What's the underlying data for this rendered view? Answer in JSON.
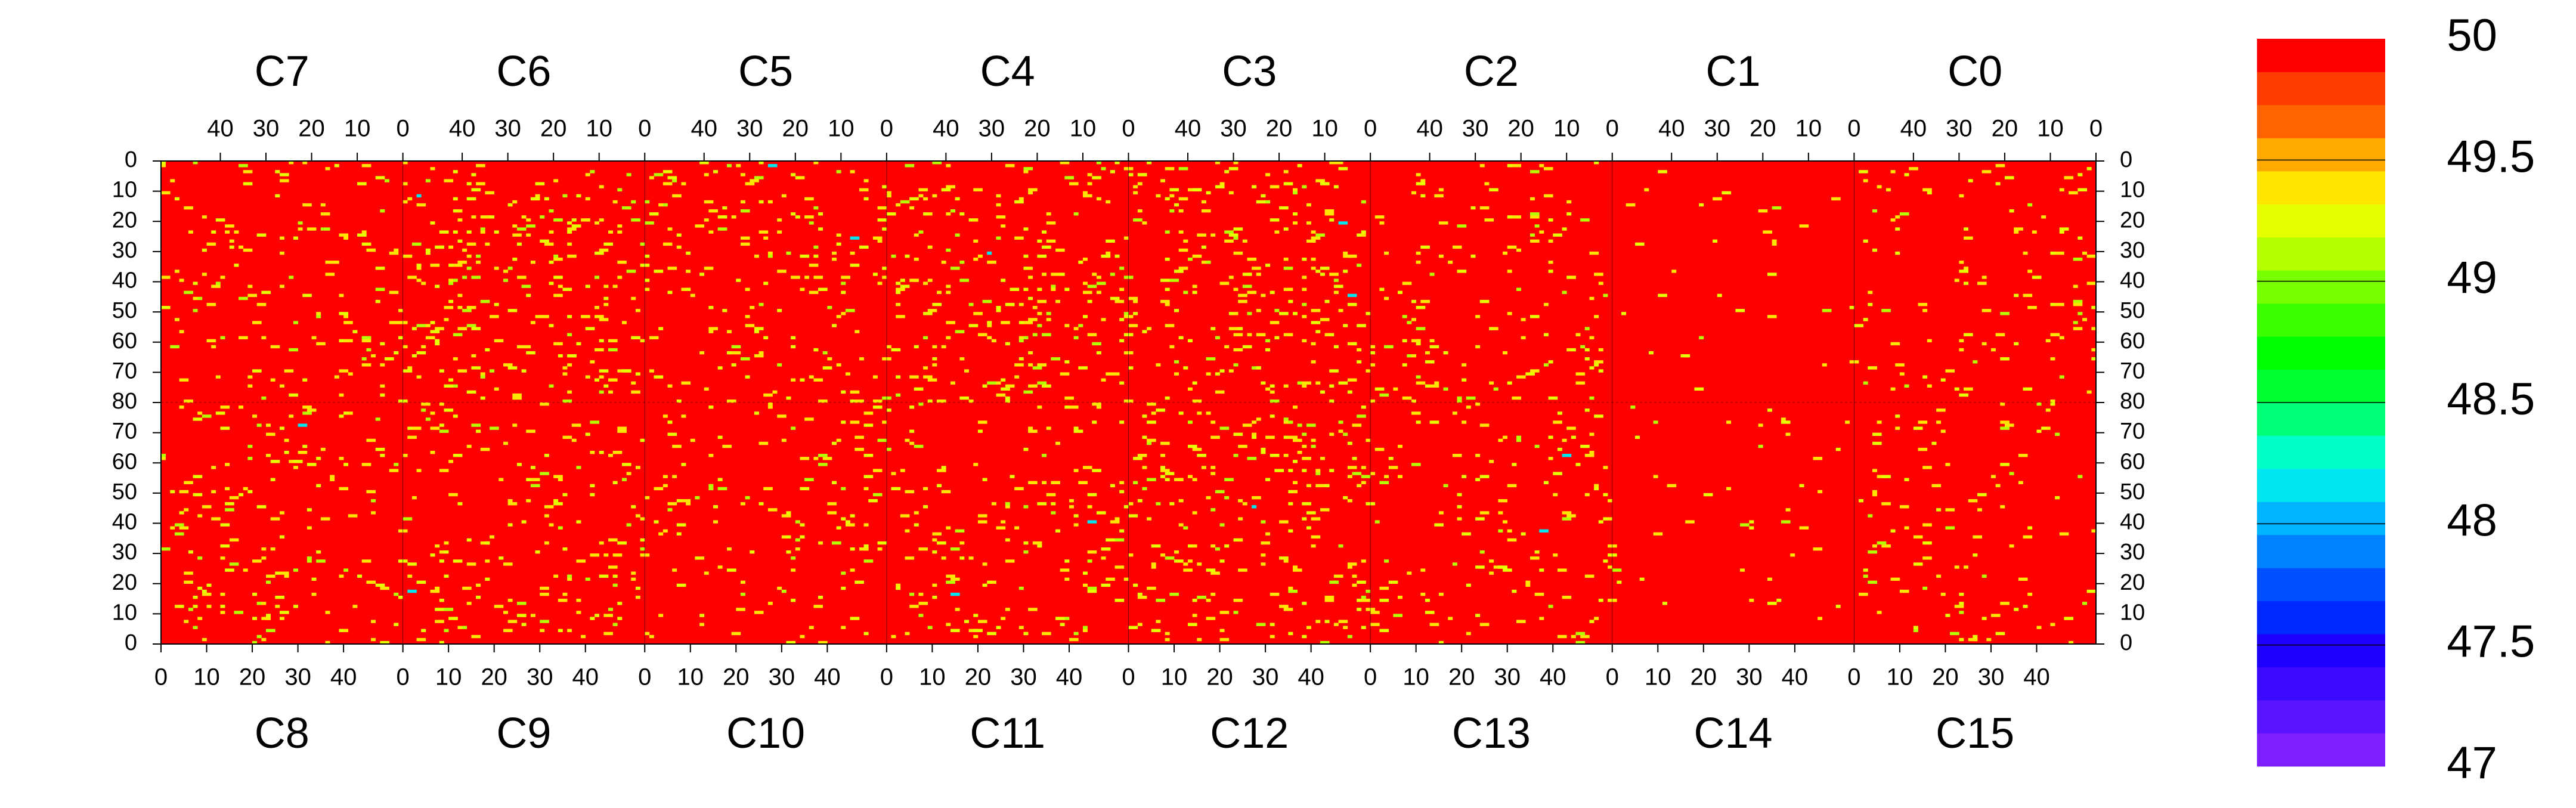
{
  "chart_data": {
    "type": "heatmap",
    "title": "",
    "top_chip_labels": [
      "C7",
      "C6",
      "C5",
      "C4",
      "C3",
      "C2",
      "C1",
      "C0"
    ],
    "bottom_chip_labels": [
      "C8",
      "C9",
      "C10",
      "C11",
      "C12",
      "C13",
      "C14",
      "C15"
    ],
    "columns_per_chip": 53,
    "rows_per_half": 80,
    "chip_tick_values": [
      0,
      10,
      20,
      30,
      40
    ],
    "top_tick_order": "descending",
    "bottom_tick_order": "ascending",
    "y_tick_values": [
      0,
      10,
      20,
      30,
      40,
      50,
      60,
      70,
      80
    ],
    "y_axis_order": "0 at top, 80 at middle, 0 at bottom",
    "colorbar": {
      "min": 47,
      "max": 50,
      "tick_labels": [
        "50",
        "49.5",
        "49",
        "48.5",
        "48",
        "47.5",
        "47"
      ],
      "tick_values": [
        50,
        49.5,
        49,
        48.5,
        48,
        47.5,
        47
      ],
      "levels": 20,
      "colors": [
        "#7f1fff",
        "#5a14ff",
        "#3c0aff",
        "#1e00ff",
        "#0028ff",
        "#0050ff",
        "#0082ff",
        "#00b4ff",
        "#00e6f0",
        "#00ffc8",
        "#00ff78",
        "#00ff32",
        "#00ff00",
        "#3cff00",
        "#78ff00",
        "#b4ff00",
        "#e6ff00",
        "#ffe600",
        "#ffaa00",
        "#ff6400",
        "#ff3c00",
        "#ff0000"
      ]
    },
    "background_value": 50,
    "background_color": "#ff0000",
    "outlier_values": [
      49.5,
      49.3,
      49.1,
      48.1
    ],
    "outlier_colors": [
      "#ffe600",
      "#e6ff00",
      "#b4ff00",
      "#00e6f0"
    ],
    "outlier_density_by_chip": {
      "C7": 0.03,
      "C6": 0.05,
      "C5": 0.04,
      "C4": 0.05,
      "C3": 0.05,
      "C2": 0.03,
      "C1": 0.006,
      "C0": 0.03,
      "C8": 0.03,
      "C9": 0.04,
      "C10": 0.025,
      "C11": 0.035,
      "C12": 0.05,
      "C13": 0.025,
      "C14": 0.012,
      "C15": 0.02
    }
  }
}
